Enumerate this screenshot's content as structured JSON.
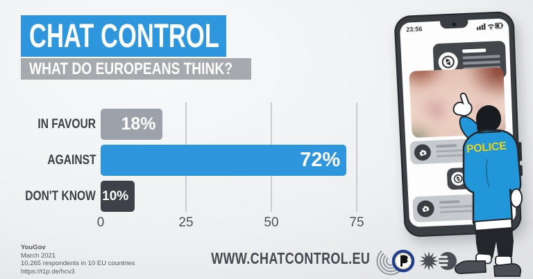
{
  "header": {
    "title": "CHAT CONTROL",
    "subtitle": "WHAT DO EUROPEANS THINK?"
  },
  "chart_data": {
    "type": "bar",
    "orientation": "horizontal",
    "categories": [
      "IN FAVOUR",
      "AGAINST",
      "DON'T KNOW"
    ],
    "values": [
      18,
      72,
      10
    ],
    "value_labels": [
      "18%",
      "72%",
      "10%"
    ],
    "bar_colors": [
      "#9ca1aa",
      "#2d96dc",
      "#3e4248"
    ],
    "x_ticks": [
      0,
      25,
      50,
      75
    ],
    "xlim": [
      0,
      75
    ],
    "grid": true,
    "legend": false,
    "title": "CHAT CONTROL — WHAT DO EUROPEANS THINK?"
  },
  "source": {
    "organisation": "YouGov",
    "date": "March 2021",
    "sample": "10,265 respondents in 10 EU countries",
    "link": "https://t1p.de/hcv3"
  },
  "footer": {
    "website": "WWW.CHATCONTROL.EU"
  },
  "phone": {
    "time": "23:56"
  },
  "officer": {
    "jacket_label": "POLICE"
  },
  "colors": {
    "accent_blue": "#2d96dc",
    "subtitle_gray": "#a6a9ae",
    "bar_gray": "#9ca1aa",
    "bar_dark": "#3e4248",
    "jacket_blue": "#2196d8",
    "police_yellow": "#e6d31f",
    "bubble_dark": "#43464b",
    "bubble_gray": "#c6c9ce"
  }
}
